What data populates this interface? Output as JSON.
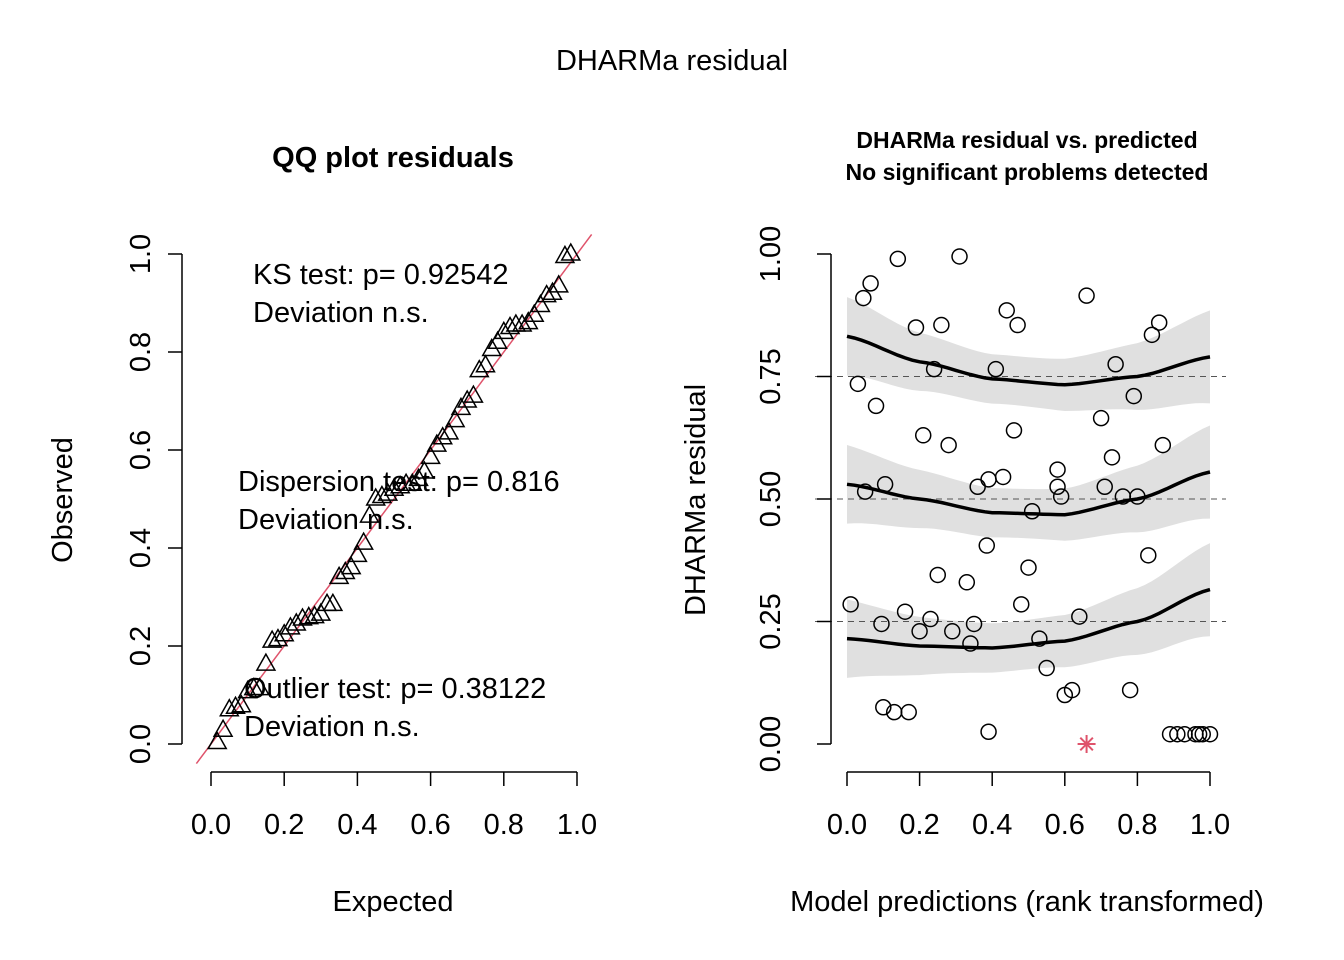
{
  "page": {
    "title": "DHARMa residual"
  },
  "chart_data": [
    {
      "type": "scatter",
      "title": "QQ plot residuals",
      "xlabel": "Expected",
      "ylabel": "Observed",
      "xlim": [
        0,
        1
      ],
      "ylim": [
        0,
        1
      ],
      "xticks": [
        "0.0",
        "0.2",
        "0.4",
        "0.6",
        "0.8",
        "1.0"
      ],
      "yticks": [
        "0.0",
        "0.2",
        "0.4",
        "0.6",
        "0.8",
        "1.0"
      ],
      "marker": "triangle",
      "reference_line": {
        "slope": 1,
        "intercept": 0,
        "color": "#df536b"
      },
      "annotations": [
        {
          "line1": "KS test: p= 0.92542",
          "line2": "Deviation  n.s."
        },
        {
          "line1": "Dispersion test: p= 0.816",
          "line2": "Deviation  n.s."
        },
        {
          "line1": "Outlier test: p= 0.38122",
          "line2": "Deviation  n.s."
        }
      ],
      "series": [
        {
          "x": [
            0.017,
            0.033,
            0.05,
            0.067,
            0.083,
            0.1,
            0.117,
            0.133,
            0.15,
            0.167,
            0.183,
            0.2,
            0.217,
            0.233,
            0.25,
            0.267,
            0.283,
            0.3,
            0.317,
            0.333,
            0.35,
            0.367,
            0.383,
            0.4,
            0.417,
            0.433,
            0.45,
            0.467,
            0.483,
            0.5,
            0.517,
            0.533,
            0.55,
            0.567,
            0.583,
            0.6,
            0.617,
            0.633,
            0.65,
            0.667,
            0.683,
            0.7,
            0.717,
            0.733,
            0.75,
            0.767,
            0.783,
            0.8,
            0.817,
            0.833,
            0.85,
            0.867,
            0.883,
            0.9,
            0.917,
            0.933,
            0.95,
            0.967,
            0.983
          ],
          "y": [
            0.003,
            0.028,
            0.07,
            0.075,
            0.078,
            0.107,
            0.113,
            0.113,
            0.163,
            0.21,
            0.213,
            0.223,
            0.237,
            0.245,
            0.255,
            0.258,
            0.26,
            0.265,
            0.285,
            0.285,
            0.34,
            0.35,
            0.36,
            0.385,
            0.41,
            0.465,
            0.5,
            0.505,
            0.51,
            0.52,
            0.525,
            0.53,
            0.53,
            0.54,
            0.555,
            0.585,
            0.61,
            0.625,
            0.635,
            0.66,
            0.685,
            0.7,
            0.71,
            0.762,
            0.772,
            0.805,
            0.82,
            0.84,
            0.85,
            0.855,
            0.855,
            0.86,
            0.875,
            0.895,
            0.915,
            0.92,
            0.935,
            0.995,
            1.0
          ]
        }
      ]
    },
    {
      "type": "scatter",
      "title": "DHARMa residual vs. predicted",
      "subtitle": "No significant problems detected",
      "xlabel": "Model predictions (rank transformed)",
      "ylabel": "DHARMa residual",
      "xlim": [
        0,
        1
      ],
      "ylim": [
        0,
        1
      ],
      "xticks": [
        "0.0",
        "0.2",
        "0.4",
        "0.6",
        "0.8",
        "1.0"
      ],
      "yticks": [
        "0.00",
        "0.25",
        "0.50",
        "0.75",
        "1.00"
      ],
      "reference_lines_y": [
        0.25,
        0.5,
        0.75
      ],
      "marker": "circle",
      "series": [
        {
          "x": [
            0.01,
            0.03,
            0.045,
            0.05,
            0.065,
            0.08,
            0.095,
            0.1,
            0.105,
            0.13,
            0.14,
            0.16,
            0.17,
            0.19,
            0.2,
            0.21,
            0.23,
            0.24,
            0.25,
            0.26,
            0.28,
            0.29,
            0.31,
            0.33,
            0.34,
            0.35,
            0.36,
            0.385,
            0.39,
            0.39,
            0.41,
            0.43,
            0.44,
            0.46,
            0.47,
            0.48,
            0.5,
            0.51,
            0.53,
            0.55,
            0.58,
            0.58,
            0.59,
            0.6,
            0.62,
            0.64,
            0.66,
            0.7,
            0.71,
            0.73,
            0.74,
            0.76,
            0.78,
            0.79,
            0.8,
            0.83,
            0.84,
            0.86,
            0.87,
            0.89,
            0.91,
            0.93,
            0.96,
            0.97,
            0.98,
            1.0
          ],
          "y": [
            0.285,
            0.735,
            0.91,
            0.515,
            0.94,
            0.69,
            0.245,
            0.075,
            0.53,
            0.065,
            0.99,
            0.27,
            0.065,
            0.85,
            0.23,
            0.63,
            0.255,
            0.765,
            0.345,
            0.855,
            0.61,
            0.23,
            0.995,
            0.33,
            0.205,
            0.245,
            0.525,
            0.405,
            0.54,
            0.025,
            0.765,
            0.545,
            0.885,
            0.64,
            0.855,
            0.285,
            0.36,
            0.475,
            0.215,
            0.155,
            0.56,
            0.525,
            0.505,
            0.1,
            0.11,
            0.26,
            0.915,
            0.665,
            0.525,
            0.585,
            0.775,
            0.505,
            0.11,
            0.71,
            0.505,
            0.385,
            0.835,
            0.86,
            0.61,
            0.02,
            0.02,
            0.02,
            0.02,
            0.02,
            0.02,
            0.02
          ]
        }
      ],
      "outliers": [
        {
          "x": 0.66,
          "y": 0.0,
          "color": "#df536b"
        }
      ],
      "quantile_curves": [
        {
          "x": [
            0.0,
            0.2,
            0.4,
            0.6,
            0.8,
            1.0
          ],
          "y": [
            0.215,
            0.2,
            0.196,
            0.21,
            0.25,
            0.315
          ]
        },
        {
          "x": [
            0.0,
            0.2,
            0.4,
            0.6,
            0.8,
            1.0
          ],
          "y": [
            0.53,
            0.5,
            0.472,
            0.468,
            0.5,
            0.555
          ]
        },
        {
          "x": [
            0.0,
            0.2,
            0.4,
            0.6,
            0.8,
            1.0
          ],
          "y": [
            0.832,
            0.78,
            0.745,
            0.733,
            0.75,
            0.79
          ]
        }
      ]
    }
  ]
}
